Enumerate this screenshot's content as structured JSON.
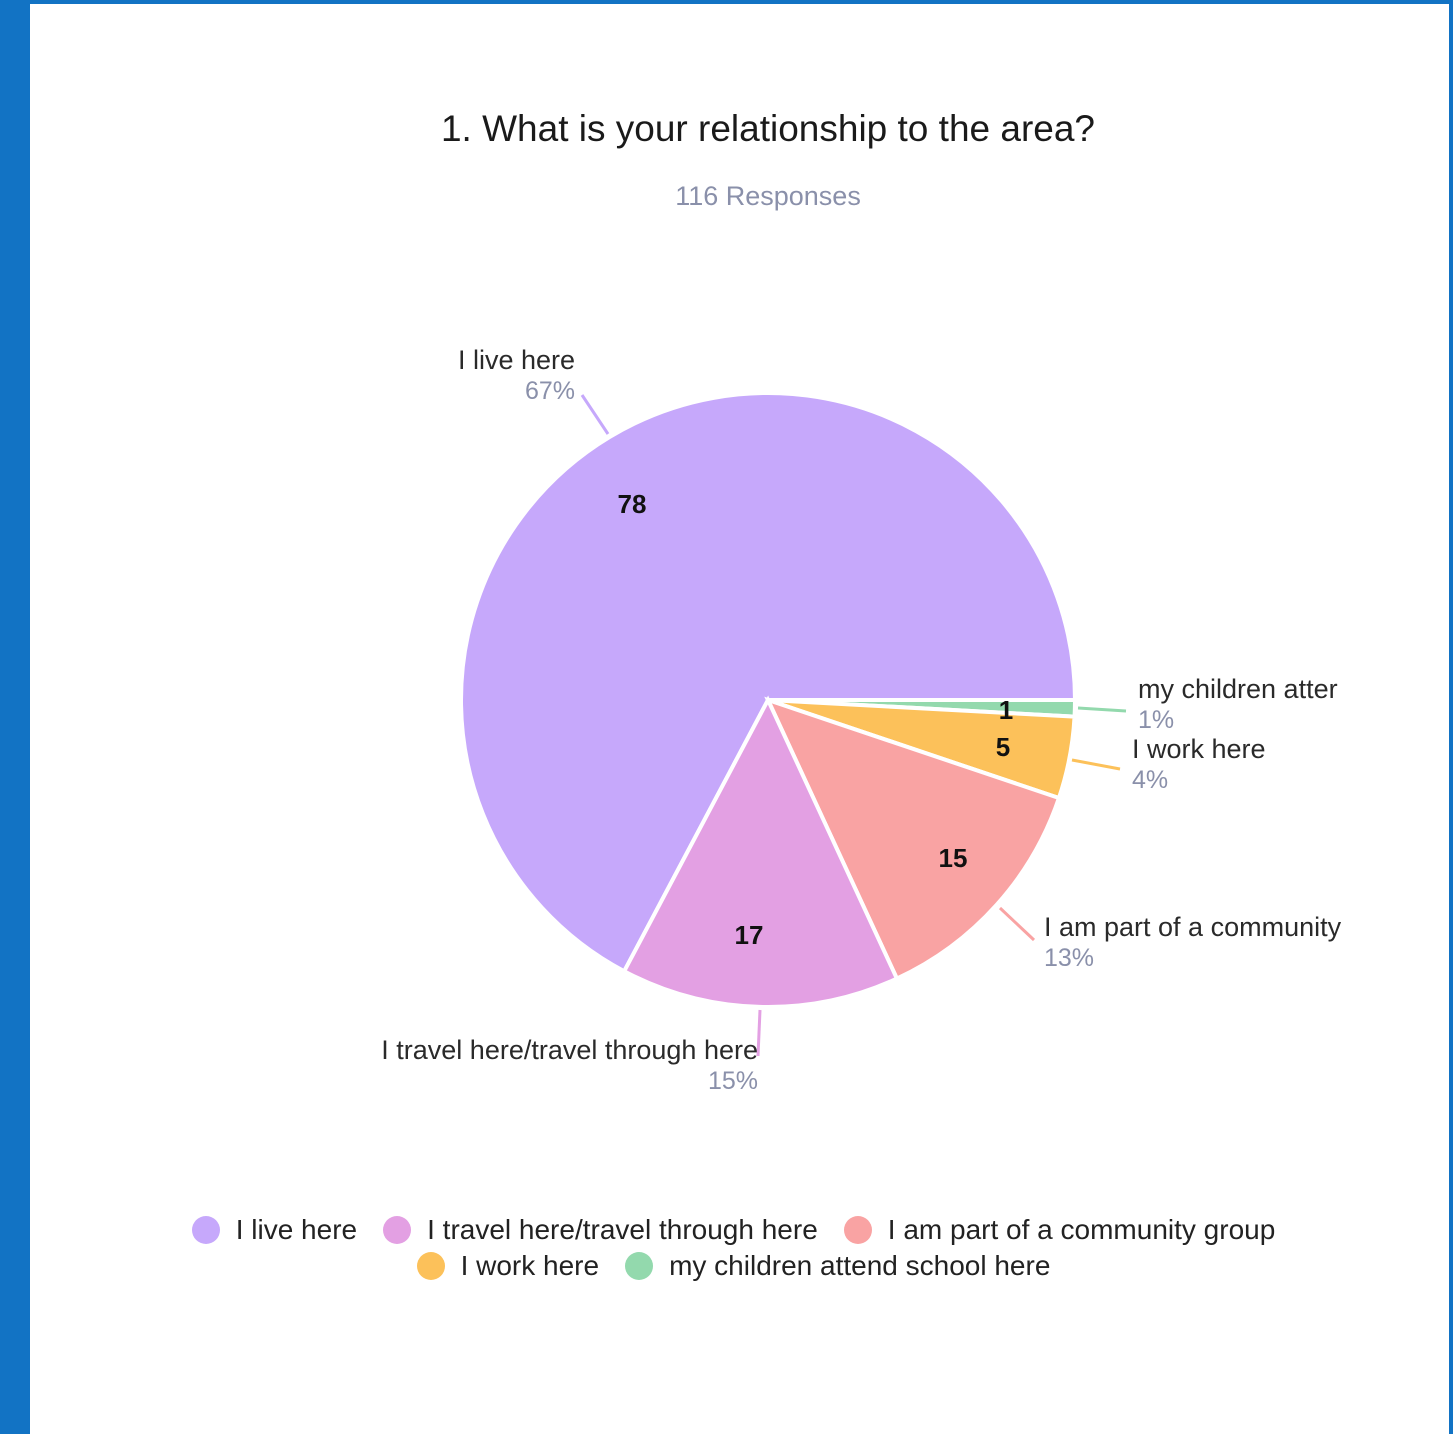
{
  "chart_data": {
    "type": "pie",
    "title": "1. What is your relationship to the area?",
    "subtitle": "116 Responses",
    "slices": [
      {
        "label": "I live here",
        "value": 78,
        "percent": "67%",
        "color": "#c6a8fb",
        "callout": "I live here"
      },
      {
        "label": "my children attend school here",
        "value": 1,
        "percent": "1%",
        "color": "#93d9ad",
        "callout": "my children atter"
      },
      {
        "label": "I work here",
        "value": 5,
        "percent": "4%",
        "color": "#fcc15a",
        "callout": "I work here"
      },
      {
        "label": "I am part of a community group",
        "value": 15,
        "percent": "13%",
        "color": "#f9a3a3",
        "callout": "I am part of a community"
      },
      {
        "label": "I travel here/travel through here",
        "value": 17,
        "percent": "15%",
        "color": "#e3a0e3",
        "callout": "I travel here/travel through here"
      }
    ],
    "legend_position": "bottom"
  },
  "legend": {
    "row1": [
      {
        "label": "I live here",
        "color": "#c6a8fb"
      },
      {
        "label": "I travel here/travel through here",
        "color": "#e3a0e3"
      },
      {
        "label": "I am part of a community group",
        "color": "#f9a3a3"
      }
    ],
    "row2": [
      {
        "label": "I work here",
        "color": "#fcc15a"
      },
      {
        "label": "my children attend school here",
        "color": "#93d9ad"
      }
    ]
  }
}
